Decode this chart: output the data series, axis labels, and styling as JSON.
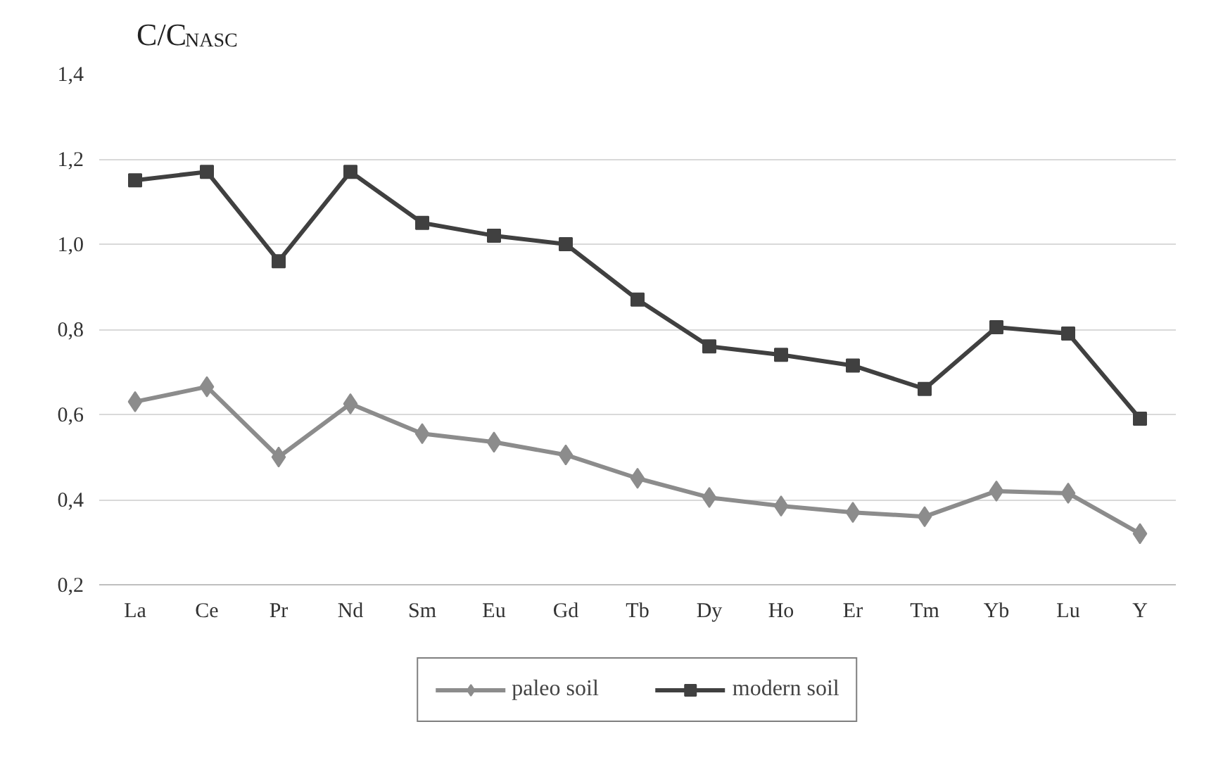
{
  "chart_data": {
    "type": "line",
    "ylabel": "C/C$_{NASC}$",
    "categories": [
      "La",
      "Ce",
      "Pr",
      "Nd",
      "Sm",
      "Eu",
      "Gd",
      "Tb",
      "Dy",
      "Ho",
      "Er",
      "Tm",
      "Yb",
      "Lu",
      "Y"
    ],
    "series": [
      {
        "name": "paleo soil",
        "color": "#8c8c8c",
        "marker": "diamond",
        "values": [
          0.63,
          0.665,
          0.5,
          0.625,
          0.555,
          0.535,
          0.505,
          0.45,
          0.405,
          0.385,
          0.37,
          0.36,
          0.42,
          0.415,
          0.32
        ]
      },
      {
        "name": "modern soil",
        "color": "#404040",
        "marker": "square",
        "values": [
          1.15,
          1.17,
          0.96,
          1.17,
          1.05,
          1.02,
          1.0,
          0.87,
          0.76,
          0.74,
          0.715,
          0.66,
          0.805,
          0.79,
          0.59
        ]
      }
    ],
    "ylim": [
      0.2,
      1.4
    ],
    "yticks": [
      {
        "value": 0.2,
        "label": "0,2"
      },
      {
        "value": 0.4,
        "label": "0,4"
      },
      {
        "value": 0.6,
        "label": "0,6"
      },
      {
        "value": 0.8,
        "label": "0,8"
      },
      {
        "value": 1.0,
        "label": "1,0"
      },
      {
        "value": 1.2,
        "label": "1,2"
      },
      {
        "value": 1.4,
        "label": "1,4"
      }
    ],
    "grid": "y",
    "legend": "bottom",
    "line_style": "solid"
  }
}
